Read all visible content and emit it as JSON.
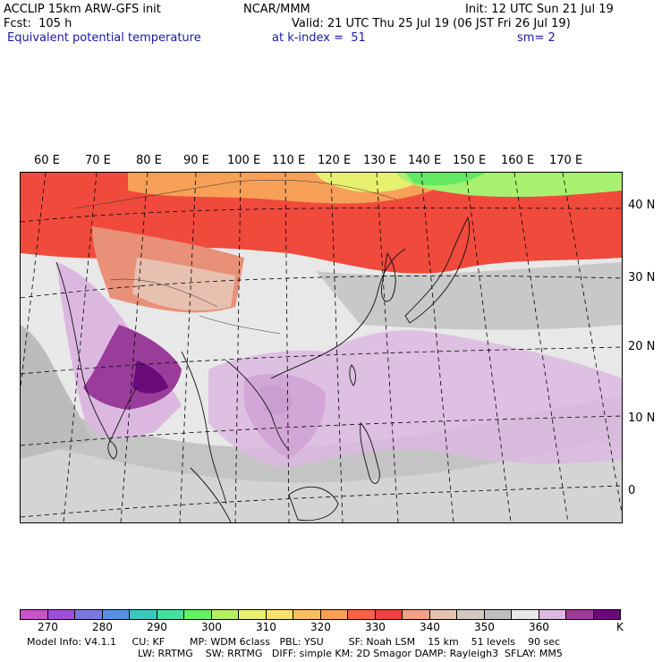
{
  "header": {
    "line1_left": "ACCLIP 15km ARW-GFS init",
    "line1_center": "NCAR/MMM",
    "line1_right": "Init: 12 UTC Sun 21 Jul 19",
    "line2_left": "Fcst:  105 h",
    "line2_right": "Valid: 21 UTC Thu 25 Jul 19 (06 JST Fri 26 Jul 19)",
    "line3_left": "Equivalent potential temperature",
    "line3_center": "at k-index =  51",
    "line3_right": "sm= 2"
  },
  "map": {
    "lon_labels": [
      "60 E",
      "70 E",
      "80 E",
      "90 E",
      "100 E",
      "110 E",
      "120 E",
      "130 E",
      "140 E",
      "150 E",
      "160 E",
      "170 E"
    ],
    "lat_labels": [
      "40 N",
      "30 N",
      "20 N",
      "10 N",
      "0"
    ]
  },
  "colorbar": {
    "colors": [
      "#c655c6",
      "#a050d8",
      "#7b78dc",
      "#5a8fe0",
      "#3cc8c0",
      "#44e0a0",
      "#64f064",
      "#b4f064",
      "#e8f070",
      "#f8e070",
      "#f8c060",
      "#f8a058",
      "#f86048",
      "#f04040",
      "#f0a088",
      "#e8c0b0",
      "#d0c8c0",
      "#bebebe",
      "#e8e8e8",
      "#dcb8e0",
      "#9a3c9a",
      "#6a0a7a"
    ],
    "tick_labels": [
      "270",
      "280",
      "290",
      "300",
      "310",
      "320",
      "330",
      "340",
      "350",
      "360",
      "K"
    ]
  },
  "footer": {
    "line1": "Model Info: V4.1.1     CU: KF        MP: WDM 6class   PBL: YSU        SF: Noah LSM    15 km    51 levels    90 sec",
    "line2": "LW: RRTMG    SW: RRTMG   DIFF: simple KM: 2D Smagor DAMP: Rayleigh3  SFLAY: MM5"
  }
}
